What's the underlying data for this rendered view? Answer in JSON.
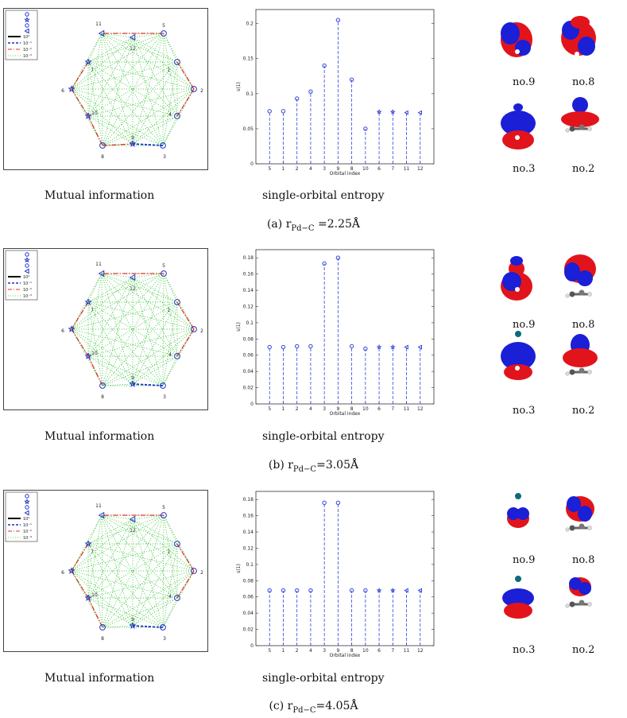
{
  "panels": [
    {
      "caption": "(a) r",
      "caption_sub": "Pd−C",
      "caption_rest": " =2.25Å",
      "mutual_info_label": "Mutual information",
      "entropy_label": "single-orbital entropy",
      "orbital_labels": [
        "no.9",
        "no.8",
        "no.3",
        "no.2"
      ]
    },
    {
      "caption": "(b) r",
      "caption_sub": "Pd−C",
      "caption_rest": "=3.05Å",
      "mutual_info_label": "Mutual information",
      "entropy_label": "single-orbital entropy",
      "orbital_labels": [
        "no.9",
        "no.8",
        "no.3",
        "no.2"
      ]
    },
    {
      "caption": "(c) r",
      "caption_sub": "Pd−C",
      "caption_rest": "=4.05Å",
      "mutual_info_label": "Mutual information",
      "entropy_label": "single-orbital entropy",
      "orbital_labels": [
        "no.9",
        "no.8",
        "no.3",
        "no.2"
      ]
    }
  ],
  "network": {
    "node_order": [
      "5",
      "1",
      "2",
      "4",
      "3",
      "9",
      "8",
      "10",
      "6",
      "7",
      "11",
      "12"
    ],
    "legend": [
      "10⁰",
      "10⁻¹",
      "10⁻²",
      "10⁻³"
    ],
    "colors": {
      "strong": "#000000",
      "medium": "#1f2fd0",
      "weak": "#e0332b",
      "faint": "#33c233",
      "node": "#2233cc"
    }
  },
  "chart_data": [
    {
      "type": "bar",
      "categories": [
        "5",
        "1",
        "2",
        "4",
        "3",
        "9",
        "8",
        "10",
        "6",
        "7",
        "11",
        "12"
      ],
      "markers": [
        "o",
        "o",
        "o",
        "o",
        "o",
        "o",
        "o",
        "o",
        "star",
        "star",
        "triangle",
        "triangle"
      ],
      "values": [
        0.075,
        0.075,
        0.093,
        0.103,
        0.14,
        0.205,
        0.12,
        0.05,
        0.074,
        0.074,
        0.073,
        0.073
      ],
      "xlabel": "Orbital index",
      "ylabel": "s(1)",
      "ylim": [
        0,
        0.22
      ],
      "yticks": [
        "0",
        "0.05",
        "0.1",
        "0.15",
        "0.2"
      ],
      "ytick_values": [
        0,
        0.05,
        0.1,
        0.15,
        0.2
      ]
    },
    {
      "type": "bar",
      "categories": [
        "5",
        "1",
        "2",
        "4",
        "3",
        "9",
        "8",
        "10",
        "6",
        "7",
        "11",
        "12"
      ],
      "markers": [
        "o",
        "o",
        "o",
        "o",
        "o",
        "o",
        "o",
        "o",
        "star",
        "star",
        "triangle",
        "triangle"
      ],
      "values": [
        0.07,
        0.07,
        0.071,
        0.071,
        0.173,
        0.18,
        0.071,
        0.068,
        0.07,
        0.07,
        0.07,
        0.07
      ],
      "xlabel": "Orbital index",
      "ylabel": "s(1)",
      "ylim": [
        0,
        0.19
      ],
      "yticks": [
        "0",
        "0.02",
        "0.04",
        "0.06",
        "0.08",
        "0.1",
        "0.12",
        "0.14",
        "0.16",
        "0.18"
      ],
      "ytick_values": [
        0,
        0.02,
        0.04,
        0.06,
        0.08,
        0.1,
        0.12,
        0.14,
        0.16,
        0.18
      ]
    },
    {
      "type": "bar",
      "categories": [
        "5",
        "1",
        "2",
        "4",
        "3",
        "9",
        "8",
        "10",
        "6",
        "7",
        "11",
        "12"
      ],
      "markers": [
        "o",
        "o",
        "o",
        "o",
        "o",
        "o",
        "o",
        "o",
        "star",
        "star",
        "triangle",
        "triangle"
      ],
      "values": [
        0.068,
        0.068,
        0.068,
        0.068,
        0.176,
        0.176,
        0.068,
        0.068,
        0.068,
        0.068,
        0.068,
        0.068
      ],
      "xlabel": "Orbital index",
      "ylabel": "s(1)",
      "ylim": [
        0,
        0.19
      ],
      "yticks": [
        "0",
        "0.02",
        "0.04",
        "0.06",
        "0.08",
        "0.1",
        "0.12",
        "0.14",
        "0.16",
        "0.18"
      ],
      "ytick_values": [
        0,
        0.02,
        0.04,
        0.06,
        0.08,
        0.1,
        0.12,
        0.14,
        0.16,
        0.18
      ]
    }
  ],
  "edges": [
    [
      {
        "a": "5",
        "b": "11",
        "type": "weak"
      },
      {
        "a": "7",
        "b": "6",
        "type": "weak"
      },
      {
        "a": "6",
        "b": "10",
        "type": "weak"
      },
      {
        "a": "10",
        "b": "8",
        "type": "weak"
      },
      {
        "a": "8",
        "b": "9",
        "type": "weak"
      },
      {
        "a": "9",
        "b": "3",
        "type": "medium"
      },
      {
        "a": "2",
        "b": "1",
        "type": "weak"
      },
      {
        "a": "2",
        "b": "4",
        "type": "weak"
      }
    ],
    [
      {
        "a": "5",
        "b": "11",
        "type": "weak"
      },
      {
        "a": "7",
        "b": "6",
        "type": "weak"
      },
      {
        "a": "6",
        "b": "10",
        "type": "weak"
      },
      {
        "a": "10",
        "b": "8",
        "type": "weak"
      },
      {
        "a": "9",
        "b": "3",
        "type": "medium"
      },
      {
        "a": "2",
        "b": "1",
        "type": "weak"
      },
      {
        "a": "2",
        "b": "4",
        "type": "weak"
      }
    ],
    [
      {
        "a": "5",
        "b": "11",
        "type": "weak"
      },
      {
        "a": "7",
        "b": "6",
        "type": "weak"
      },
      {
        "a": "6",
        "b": "10",
        "type": "weak"
      },
      {
        "a": "10",
        "b": "8",
        "type": "weak"
      },
      {
        "a": "9",
        "b": "3",
        "type": "medium"
      },
      {
        "a": "2",
        "b": "1",
        "type": "weak"
      },
      {
        "a": "2",
        "b": "4",
        "type": "weak"
      }
    ]
  ]
}
